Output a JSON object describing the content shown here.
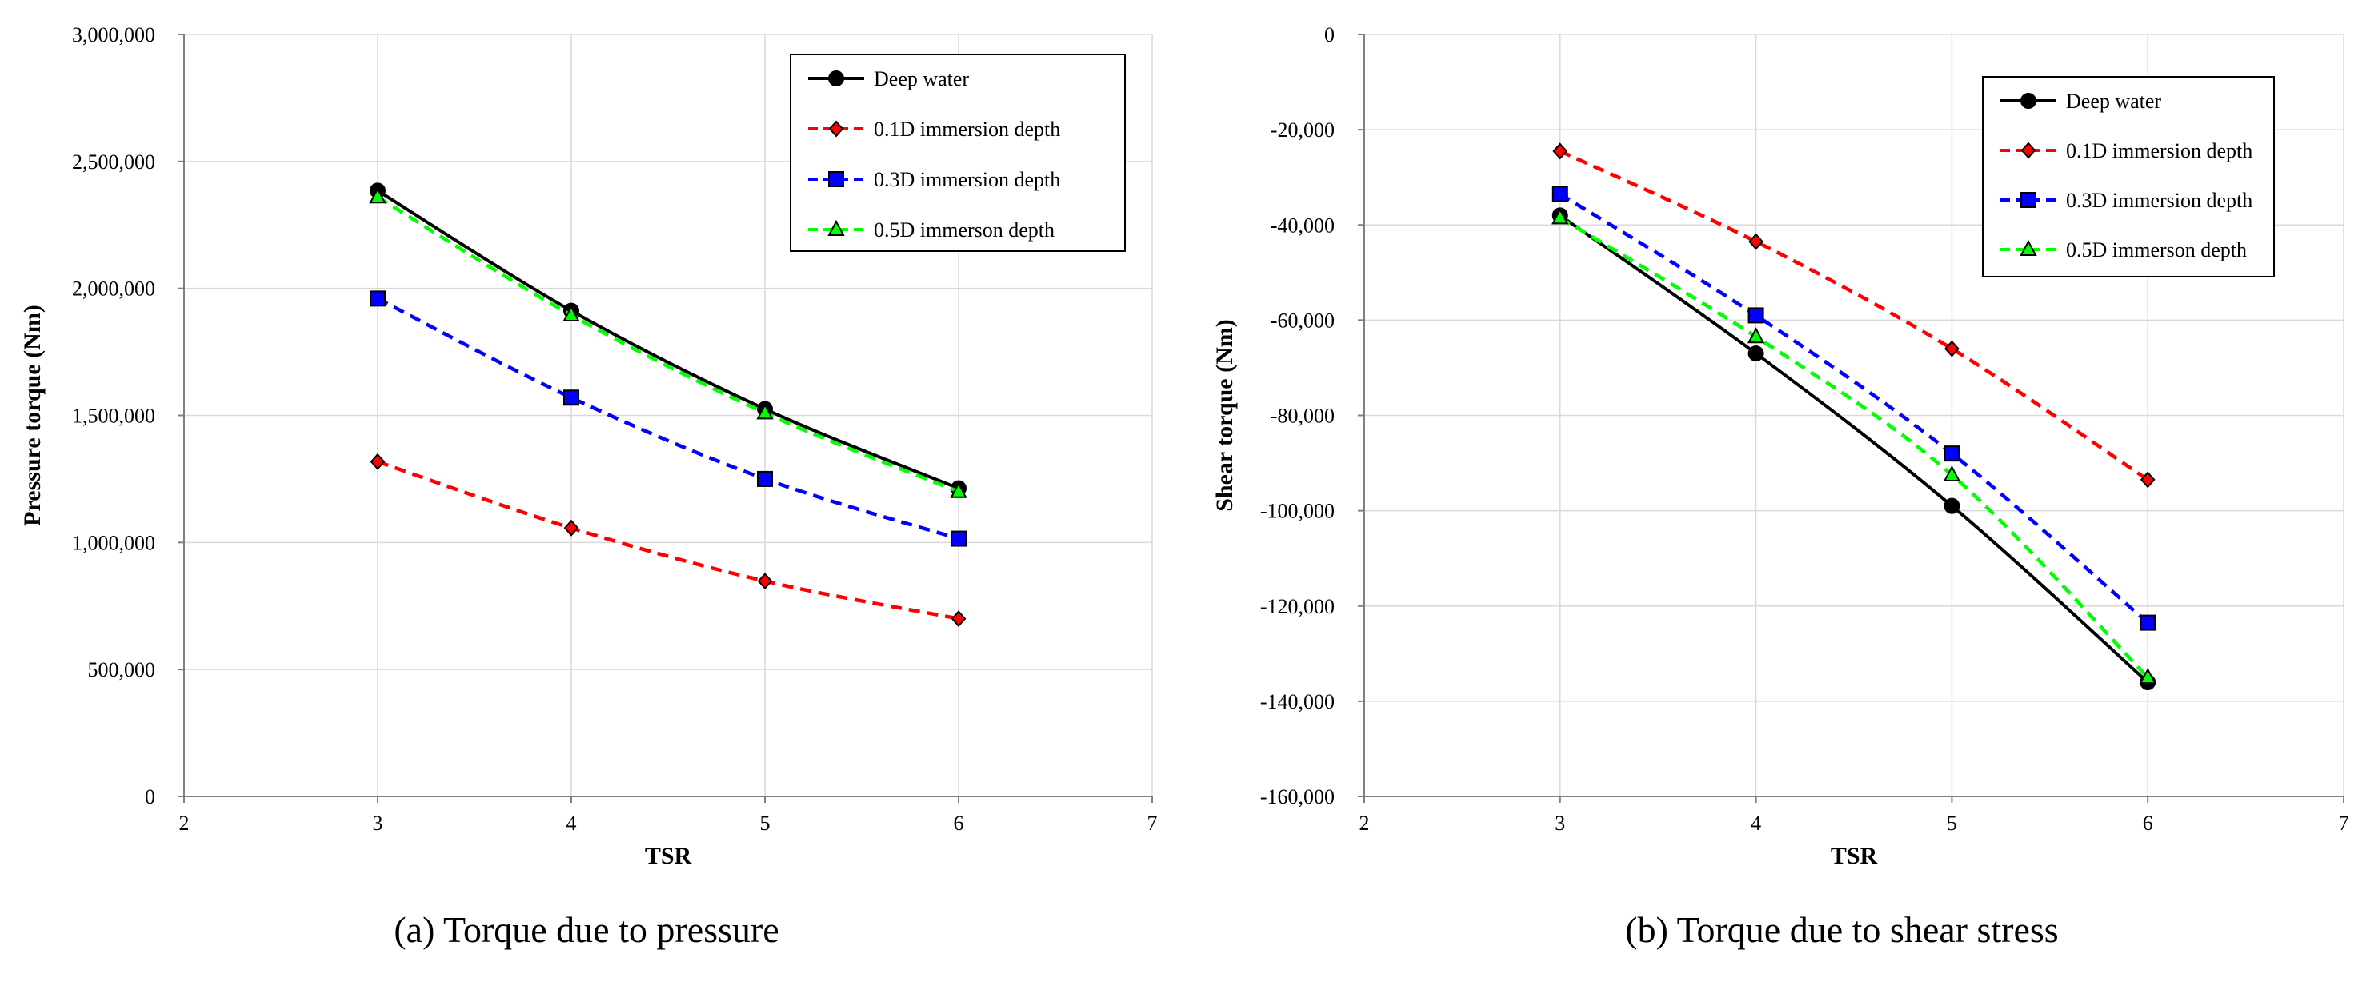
{
  "chart_data": [
    {
      "type": "line",
      "title": "",
      "caption": "(a) Torque due to pressure",
      "xlabel": "TSR",
      "ylabel": "Pressure torque (Nm)",
      "xlim": [
        2,
        7
      ],
      "ylim": [
        0,
        3000000
      ],
      "xticks": [
        2,
        3,
        4,
        5,
        6,
        7
      ],
      "yticks": [
        0,
        500000,
        1000000,
        1500000,
        2000000,
        2500000,
        3000000
      ],
      "xtick_labels": [
        "2",
        "3",
        "4",
        "5",
        "6",
        "7"
      ],
      "ytick_labels": [
        "0",
        "500,000",
        "1,000,000",
        "1,500,000",
        "2,000,000",
        "2,500,000",
        "3,000,000"
      ],
      "grid": true,
      "legend_position": "top-right",
      "x": [
        3,
        4,
        5,
        6
      ],
      "series": [
        {
          "name": "Deep water",
          "values": [
            2385000,
            1912000,
            1525000,
            1213000
          ],
          "color": "#000000",
          "dash": "solid",
          "marker": "circle"
        },
        {
          "name": "0.1D immersion depth",
          "values": [
            1318000,
            1057000,
            848000,
            700000
          ],
          "color": "#ff0000",
          "dash": "dashed",
          "marker": "diamond"
        },
        {
          "name": "0.3D immersion depth",
          "values": [
            1960000,
            1570000,
            1250000,
            1015000
          ],
          "color": "#0000ff",
          "dash": "dashed",
          "marker": "square"
        },
        {
          "name": "0.5D immerson depth",
          "values": [
            2360000,
            1895000,
            1510000,
            1200000
          ],
          "color": "#00ff00",
          "dash": "dashed",
          "marker": "triangle"
        }
      ]
    },
    {
      "type": "line",
      "title": "",
      "caption": "(b) Torque due to shear stress",
      "xlabel": "TSR",
      "ylabel": "Shear torque (Nm)",
      "xlim": [
        2,
        7
      ],
      "ylim": [
        -160000,
        0
      ],
      "xticks": [
        2,
        3,
        4,
        5,
        6,
        7
      ],
      "yticks": [
        -160000,
        -140000,
        -120000,
        -100000,
        -80000,
        -60000,
        -40000,
        -20000,
        0
      ],
      "xtick_labels": [
        "2",
        "3",
        "4",
        "5",
        "6",
        "7"
      ],
      "ytick_labels": [
        "-160,000",
        "-140,000",
        "-120,000",
        "-100,000",
        "-80,000",
        "-60,000",
        "-40,000",
        "-20,000",
        "0"
      ],
      "grid": true,
      "legend_position": "top-right",
      "x": [
        3,
        4,
        5,
        6
      ],
      "series": [
        {
          "name": "Deep water",
          "values": [
            -38000,
            -67000,
            -99000,
            -136000
          ],
          "color": "#000000",
          "dash": "solid",
          "marker": "circle"
        },
        {
          "name": "0.1D immersion depth",
          "values": [
            -24500,
            -43500,
            -66000,
            -93500
          ],
          "color": "#ff0000",
          "dash": "dashed",
          "marker": "diamond"
        },
        {
          "name": "0.3D immersion depth",
          "values": [
            -33500,
            -59000,
            -88000,
            -123500
          ],
          "color": "#0000ff",
          "dash": "dashed",
          "marker": "square"
        },
        {
          "name": "0.5D immerson depth",
          "values": [
            -38500,
            -63500,
            -92500,
            -135000
          ],
          "color": "#00ff00",
          "dash": "dashed",
          "marker": "triangle"
        }
      ]
    }
  ],
  "colors": {
    "grid": "#d9d9d9",
    "axis": "#7f7f7f",
    "marker_stroke": "#000000"
  }
}
